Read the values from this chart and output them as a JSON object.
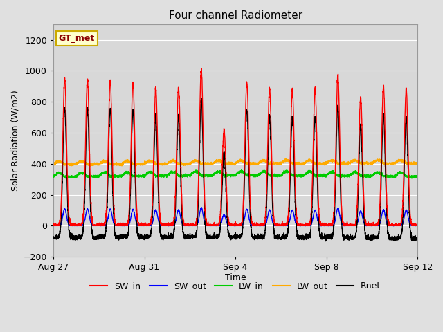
{
  "title": "Four channel Radiometer",
  "xlabel": "Time",
  "ylabel": "Solar Radiation (W/m2)",
  "annotation": "GT_met",
  "ylim": [
    -200,
    1300
  ],
  "yticks": [
    -200,
    0,
    200,
    400,
    600,
    800,
    1000,
    1200
  ],
  "background_color": "#e0e0e0",
  "plot_bg_color": "#d8d8d8",
  "grid_color": "#ffffff",
  "series": {
    "SW_in": {
      "color": "#ff0000",
      "lw": 1.0
    },
    "SW_out": {
      "color": "#0000ff",
      "lw": 1.0
    },
    "LW_in": {
      "color": "#00cc00",
      "lw": 1.0
    },
    "LW_out": {
      "color": "#ffaa00",
      "lw": 1.0
    },
    "Rnet": {
      "color": "#000000",
      "lw": 1.0
    }
  },
  "x_tick_labels": [
    "Aug 27",
    "Aug 31",
    "Sep 4",
    "Sep 8",
    "Sep 12"
  ],
  "x_tick_positions": [
    0,
    4,
    8,
    12,
    16
  ],
  "total_days": 17,
  "pts_per_day": 288
}
